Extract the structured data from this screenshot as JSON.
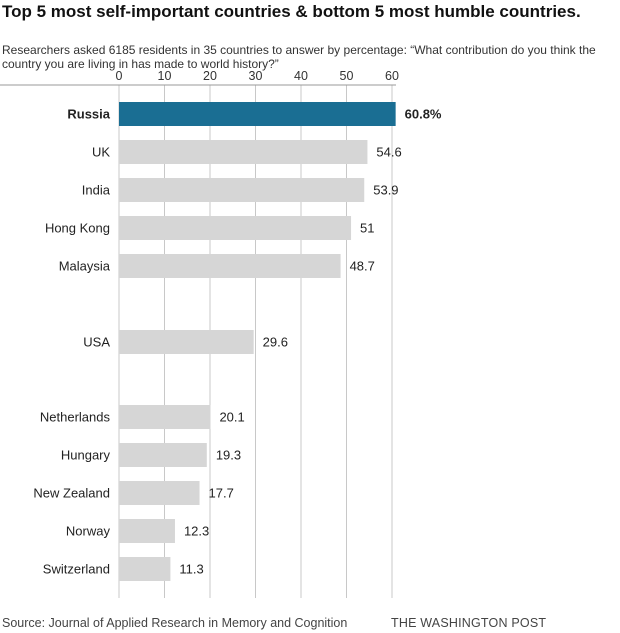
{
  "chart_data": {
    "type": "bar",
    "orientation": "horizontal",
    "title": "Top 5 most self-important countries & bottom 5 most humble countries.",
    "subtitle": "Researchers asked 6185 residents in 35 countries to answer by percentage: “What contribution do you think the country you are living in has made to world history?”",
    "categories": [
      "Russia",
      "UK",
      "India",
      "Hong Kong",
      "Malaysia",
      "USA",
      "Netherlands",
      "Hungary",
      "New Zealand",
      "Norway",
      "Switzerland"
    ],
    "values": [
      60.8,
      54.6,
      53.9,
      51,
      48.7,
      29.6,
      20.1,
      19.3,
      17.7,
      12.3,
      11.3
    ],
    "value_labels": [
      "60.8%",
      "54.6",
      "53.9",
      "51",
      "48.7",
      "29.6",
      "20.1",
      "19.3",
      "17.7",
      "12.3",
      "11.3"
    ],
    "highlight_category": "Russia",
    "xticks": [
      0,
      10,
      20,
      30,
      40,
      50,
      60
    ],
    "xlim": [
      0,
      60
    ],
    "grid": true,
    "xlabel": "",
    "ylabel": "",
    "colors": {
      "highlight": "#1a6e93",
      "bar": "#d6d6d6",
      "grid": "#c8c8c8",
      "axis": "#999999"
    }
  },
  "footer": {
    "source": "Source: Journal of Applied Research in Memory and Cognition",
    "credit": "THE WASHINGTON POST"
  }
}
